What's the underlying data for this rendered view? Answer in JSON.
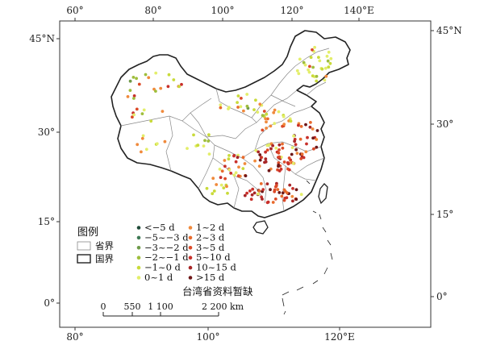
{
  "axes": {
    "top": [
      "60°",
      "80°",
      "100°",
      "120°",
      "140°E"
    ],
    "bottom": [
      "80°",
      "100°",
      "120°E"
    ],
    "left": [
      "45°N",
      "30°",
      "15°",
      "0°"
    ],
    "right": [
      "45°N",
      "30°",
      "15°",
      "0°"
    ]
  },
  "legend": {
    "title": "图例",
    "province_label": "省界",
    "country_label": "国界",
    "classes": [
      {
        "label": "<−5 d",
        "color": "#1f4a38"
      },
      {
        "label": "−5~−3 d",
        "color": "#3f7a55"
      },
      {
        "label": "−3~−2 d",
        "color": "#6f9a4a"
      },
      {
        "label": "−2~−1 d",
        "color": "#9fbe3c"
      },
      {
        "label": "−1~0 d",
        "color": "#c9db3a"
      },
      {
        "label": "0~1 d",
        "color": "#e3ee6a"
      },
      {
        "label": "1~2 d",
        "color": "#f08a3c"
      },
      {
        "label": "2~3 d",
        "color": "#e86a2c"
      },
      {
        "label": "3~5 d",
        "color": "#dc4a28"
      },
      {
        "label": "5~10 d",
        "color": "#c8302a"
      },
      {
        "label": "10~15 d",
        "color": "#a82526"
      },
      {
        "label": ">15 d",
        "color": "#6e1718"
      }
    ]
  },
  "note": "台湾省资料暂缺",
  "scale": {
    "labels": [
      "0",
      "550",
      "1 100",
      "2 200 km"
    ]
  }
}
